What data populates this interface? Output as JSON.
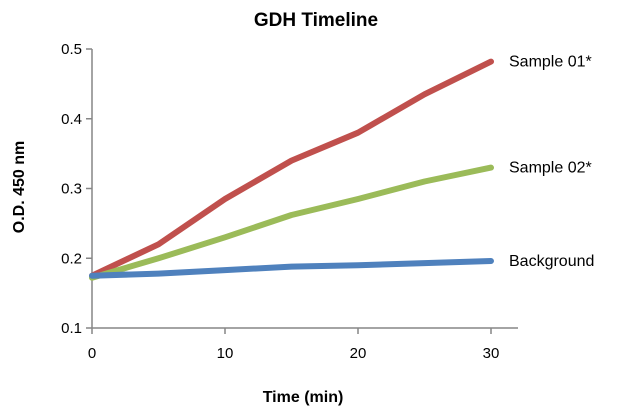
{
  "chart_data": {
    "type": "line",
    "title": "GDH Timeline",
    "xlabel": "Time (min)",
    "ylabel": "O.D. 450 nm",
    "xlim": [
      0,
      30
    ],
    "ylim": [
      0.1,
      0.5
    ],
    "xticks": [
      0,
      10,
      20,
      30
    ],
    "yticks": [
      0.1,
      0.2,
      0.3,
      0.4,
      0.5
    ],
    "grid": false,
    "legend": "inline-right",
    "x": [
      0,
      5,
      10,
      15,
      20,
      25,
      30
    ],
    "series": [
      {
        "name": "Sample 01*",
        "color": "#c0504d",
        "values": [
          0.175,
          0.22,
          0.285,
          0.34,
          0.38,
          0.435,
          0.482
        ]
      },
      {
        "name": "Sample 02*",
        "color": "#9bbb59",
        "values": [
          0.172,
          0.2,
          0.23,
          0.262,
          0.285,
          0.31,
          0.33
        ]
      },
      {
        "name": "Background",
        "color": "#4f81bd",
        "values": [
          0.175,
          0.178,
          0.183,
          0.188,
          0.19,
          0.193,
          0.196
        ]
      }
    ]
  }
}
